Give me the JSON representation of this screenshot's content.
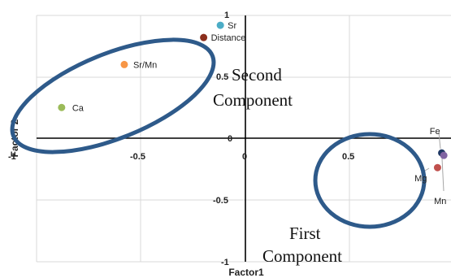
{
  "chart_data": {
    "type": "scatter",
    "xlabel": "Factor1",
    "ylabel": "Factor 2",
    "xlim": [
      -1,
      1
    ],
    "ylim": [
      -1,
      1
    ],
    "x_ticks": [
      "-1",
      "-0.5",
      "0",
      "0.5"
    ],
    "y_ticks": [
      "1",
      "0.5",
      "0",
      "-0.5",
      "-1"
    ],
    "grid": true,
    "points": [
      {
        "label": "Sr",
        "x": -0.12,
        "y": 0.92,
        "color": "#4bacc6"
      },
      {
        "label": "Distance",
        "x": -0.2,
        "y": 0.82,
        "color": "#8b2e1c"
      },
      {
        "label": "Sr/Mn",
        "x": -0.58,
        "y": 0.6,
        "color": "#f79646"
      },
      {
        "label": "Ca",
        "x": -0.88,
        "y": 0.25,
        "color": "#9bbb59"
      },
      {
        "label": "Fe",
        "x": 0.94,
        "y": -0.12,
        "color": "#1f3864"
      },
      {
        "label": "Mg",
        "x": 0.92,
        "y": -0.24,
        "color": "#c0504d"
      },
      {
        "label": "Mn",
        "x": 0.95,
        "y": -0.14,
        "color": "#8064a2"
      }
    ],
    "annotations": [
      {
        "line1": "Second",
        "line2": "Component"
      },
      {
        "line1": "First",
        "line2": "Component"
      }
    ]
  }
}
